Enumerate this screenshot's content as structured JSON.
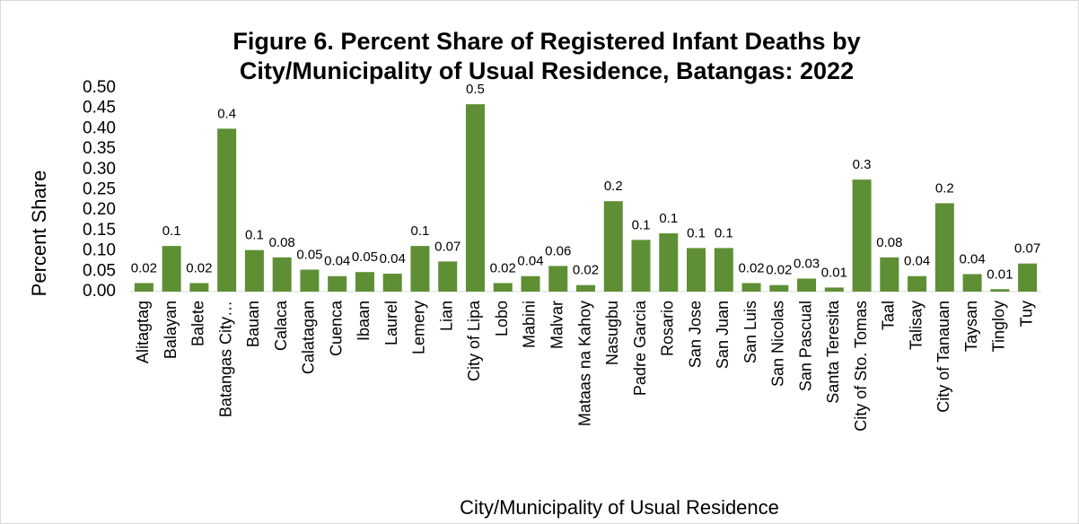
{
  "chart_data": {
    "type": "bar",
    "title": "Figure 6. Percent Share of Registered Infant Deaths by City/Municipality of Usual Residence, Batangas: 2022",
    "y_label": "Percent Share",
    "x_label": "City/Municipality of Usual Residence",
    "color": "#5e8f35",
    "categories": [
      "Alitagtag",
      "Balayan",
      "Balete",
      "Batangas City…",
      "Bauan",
      "Calaca",
      "Calatagan",
      "Cuenca",
      "Ibaan",
      "Laurel",
      "Lemery",
      "Lian",
      "City of Lipa",
      "Lobo",
      "Mabini",
      "Malvar",
      "Mataas na Kahoy",
      "Nasugbu",
      "Padre Garcia",
      "Rosario",
      "San Jose",
      "San Juan",
      "San Luis",
      "San Nicolas",
      "San Pascual",
      "Santa Teresita",
      "City of Sto. Tomas",
      "Taal",
      "Talisay",
      "City of Tanauan",
      "Taysan",
      "Tingloy",
      "Tuy"
    ],
    "values": [
      0.021,
      0.112,
      0.021,
      0.4,
      0.102,
      0.084,
      0.054,
      0.038,
      0.048,
      0.044,
      0.112,
      0.074,
      0.46,
      0.021,
      0.038,
      0.063,
      0.016,
      0.222,
      0.127,
      0.143,
      0.107,
      0.107,
      0.021,
      0.016,
      0.032,
      0.01,
      0.275,
      0.084,
      0.038,
      0.217,
      0.043,
      0.006,
      0.069
    ],
    "value_labels": [
      "0.02",
      "0.1",
      "0.02",
      "0.4",
      "0.1",
      "0.08",
      "0.05",
      "0.04",
      "0.05",
      "0.04",
      "0.1",
      "0.07",
      "0.5",
      "0.02",
      "0.04",
      "0.06",
      "0.02",
      "0.2",
      "0.1",
      "0.1",
      "0.1",
      "0.1",
      "0.02",
      "0.02",
      "0.03",
      "0.01",
      "0.3",
      "0.08",
      "0.04",
      "0.2",
      "0.04",
      "0.01",
      "0.07"
    ],
    "ylim": [
      0,
      0.5
    ],
    "yticks": [
      {
        "value": 0,
        "label": "0.00"
      },
      {
        "value": 0.05,
        "label": "0.05"
      },
      {
        "value": 0.1,
        "label": "0.10"
      },
      {
        "value": 0.15,
        "label": "0.15"
      },
      {
        "value": 0.2,
        "label": "0.20"
      },
      {
        "value": 0.25,
        "label": "0.25"
      },
      {
        "value": 0.3,
        "label": "0.30"
      },
      {
        "value": 0.35,
        "label": "0.35"
      },
      {
        "value": 0.4,
        "label": "0.40"
      },
      {
        "value": 0.45,
        "label": "0.45"
      },
      {
        "value": 0.5,
        "label": "0.50"
      }
    ],
    "grid": false
  }
}
